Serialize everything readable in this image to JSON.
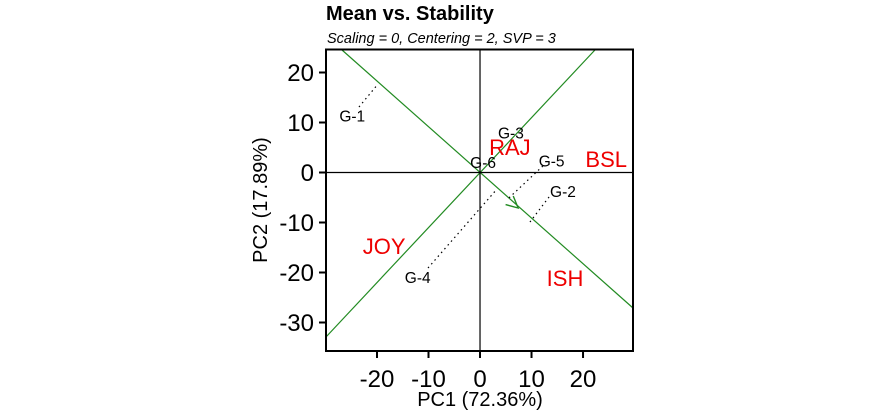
{
  "chart_data": {
    "type": "scatter",
    "title": "Mean vs. Stability",
    "subtitle": "Scaling = 0, Centering = 2, SVP = 3",
    "xlabel": "PC1 (72.36%)",
    "ylabel": "PC2 (17.89%)",
    "xlim": [
      -29.9,
      29.7
    ],
    "ylim": [
      -35.7,
      24.6
    ],
    "xticks": [
      -20,
      -10,
      0,
      10,
      20
    ],
    "yticks": [
      20,
      10,
      0,
      -10,
      -20,
      -30
    ],
    "grid": false,
    "legend": "none",
    "colors": {
      "axis_green": "#228B22",
      "env_label": "#EE0000",
      "genotype_label": "#000000",
      "frame": "#000000"
    },
    "genotypes": [
      {
        "name": "G-1",
        "x": -24.8,
        "y": 11.3
      },
      {
        "name": "G-2",
        "x": 16.1,
        "y": -3.8
      },
      {
        "name": "G-3",
        "x": 6.0,
        "y": 7.9
      },
      {
        "name": "G-4",
        "x": -12.1,
        "y": -21.0
      },
      {
        "name": "G-5",
        "x": 13.9,
        "y": 2.3
      },
      {
        "name": "G-6",
        "x": 0.6,
        "y": 2.0
      }
    ],
    "environments": [
      {
        "name": "RAJ",
        "x": 5.8,
        "y": 5.1
      },
      {
        "name": "BSL",
        "x": 24.5,
        "y": 2.7
      },
      {
        "name": "JOY",
        "x": -18.6,
        "y": -14.7
      },
      {
        "name": "ISH",
        "x": 16.5,
        "y": -21.1
      }
    ],
    "average_environment_axis": {
      "x1": -26.9,
      "y1": 24.6,
      "x2": 29.7,
      "y2": -27.1,
      "arrow_at": {
        "x": 7.4,
        "y": -7.1
      }
    },
    "stability_axis": {
      "x1": -29.9,
      "y1": -32.9,
      "x2": 22.4,
      "y2": 24.6
    },
    "projections": [
      {
        "genotype": "G-1",
        "x1": -23.5,
        "y1": 13.1,
        "x2": -19.8,
        "y2": 17.7
      },
      {
        "genotype": "G-4",
        "x1": -10.1,
        "y1": -19.1,
        "x2": 3.3,
        "y2": -3.3
      },
      {
        "genotype": "G-5",
        "x1": 12.2,
        "y1": 1.3,
        "x2": 5.4,
        "y2": -5.3
      },
      {
        "genotype": "G-2",
        "x1": 13.4,
        "y1": -4.9,
        "x2": 9.7,
        "y2": -9.9
      }
    ]
  }
}
